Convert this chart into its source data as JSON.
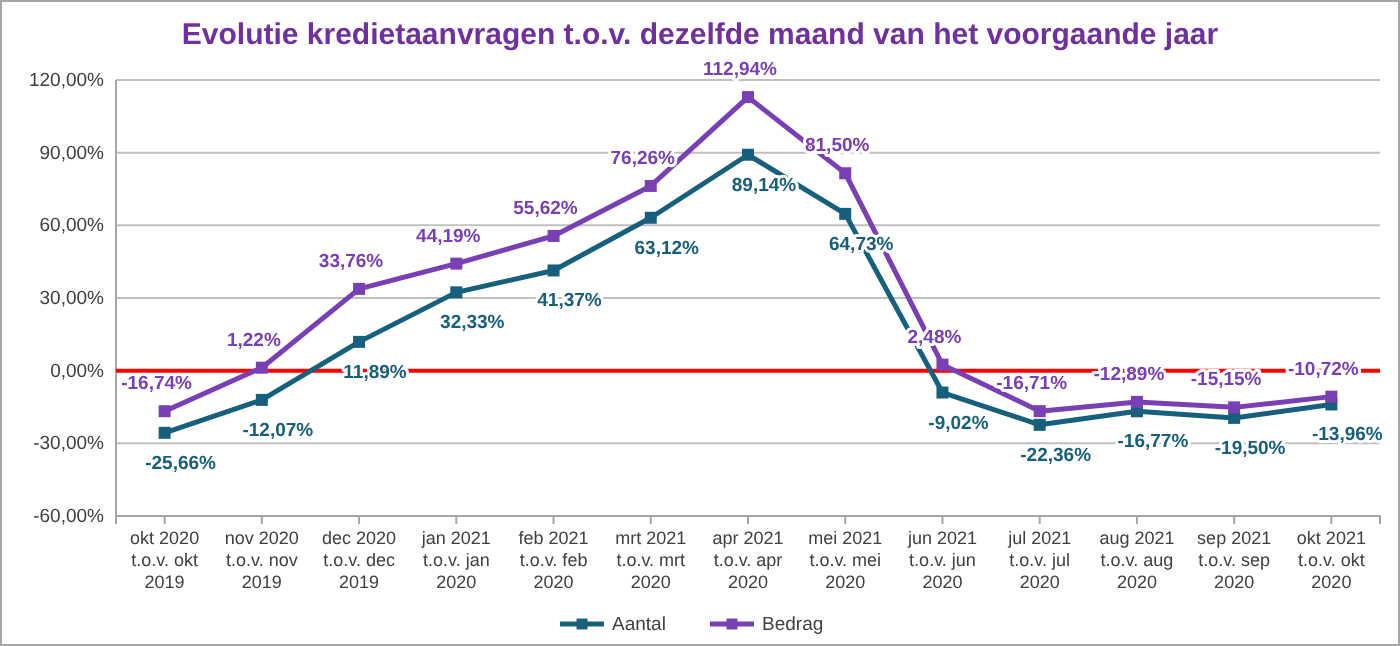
{
  "chart_data": {
    "type": "line",
    "title": "Evolutie kredietaanvragen t.o.v. dezelfde maand van het voorgaande jaar",
    "categories": [
      "okt 2020 t.o.v. okt 2019",
      "nov 2020 t.o.v. nov 2019",
      "dec 2020 t.o.v. dec 2019",
      "jan 2021 t.o.v. jan 2020",
      "feb 2021 t.o.v. feb 2020",
      "mrt 2021 t.o.v. mrt 2020",
      "apr 2021 t.o.v. apr 2020",
      "mei 2021 t.o.v. mei 2020",
      "jun 2021 t.o.v. jun 2020",
      "jul 2021 t.o.v. jul 2020",
      "aug 2021 t.o.v. aug 2020",
      "sep 2021 t.o.v. sep 2020",
      "okt 2021 t.o.v. okt 2020"
    ],
    "series": [
      {
        "name": "Aantal",
        "color": "#17607d",
        "values": [
          -25.66,
          -12.07,
          11.89,
          32.33,
          41.37,
          63.12,
          89.14,
          64.73,
          -9.02,
          -22.36,
          -16.77,
          -19.5,
          -13.96
        ],
        "value_labels": [
          "-25,66%",
          "-12,07%",
          "11,89%",
          "32,33%",
          "41,37%",
          "63,12%",
          "89,14%",
          "64,73%",
          "-9,02%",
          "-22,36%",
          "-16,77%",
          "-19,50%",
          "-13,96%"
        ]
      },
      {
        "name": "Bedrag",
        "color": "#7b3fb5",
        "values": [
          -16.74,
          1.22,
          33.76,
          44.19,
          55.62,
          76.26,
          112.94,
          81.5,
          2.48,
          -16.71,
          -12.89,
          -15.15,
          -10.72
        ],
        "value_labels": [
          "-16,74%",
          "1,22%",
          "33,76%",
          "44,19%",
          "55,62%",
          "76,26%",
          "112,94%",
          "81,50%",
          "2,48%",
          "-16,71%",
          "-12,89%",
          "-15,15%",
          "-10,72%"
        ]
      }
    ],
    "ylim": [
      -60,
      120
    ],
    "yticks": [
      {
        "value": -60,
        "label": "-60,00%"
      },
      {
        "value": -30,
        "label": "-30,00%"
      },
      {
        "value": 0,
        "label": "0,00%"
      },
      {
        "value": 30,
        "label": "30,00%"
      },
      {
        "value": 60,
        "label": "60,00%"
      },
      {
        "value": 90,
        "label": "90,00%"
      },
      {
        "value": 120,
        "label": "120,00%"
      }
    ],
    "grid": "y",
    "legend": "bottom",
    "marker": "square",
    "line_style": "solid",
    "ref_lines": [
      {
        "axis": "y",
        "value": 0,
        "color": "#ff0000"
      }
    ]
  }
}
